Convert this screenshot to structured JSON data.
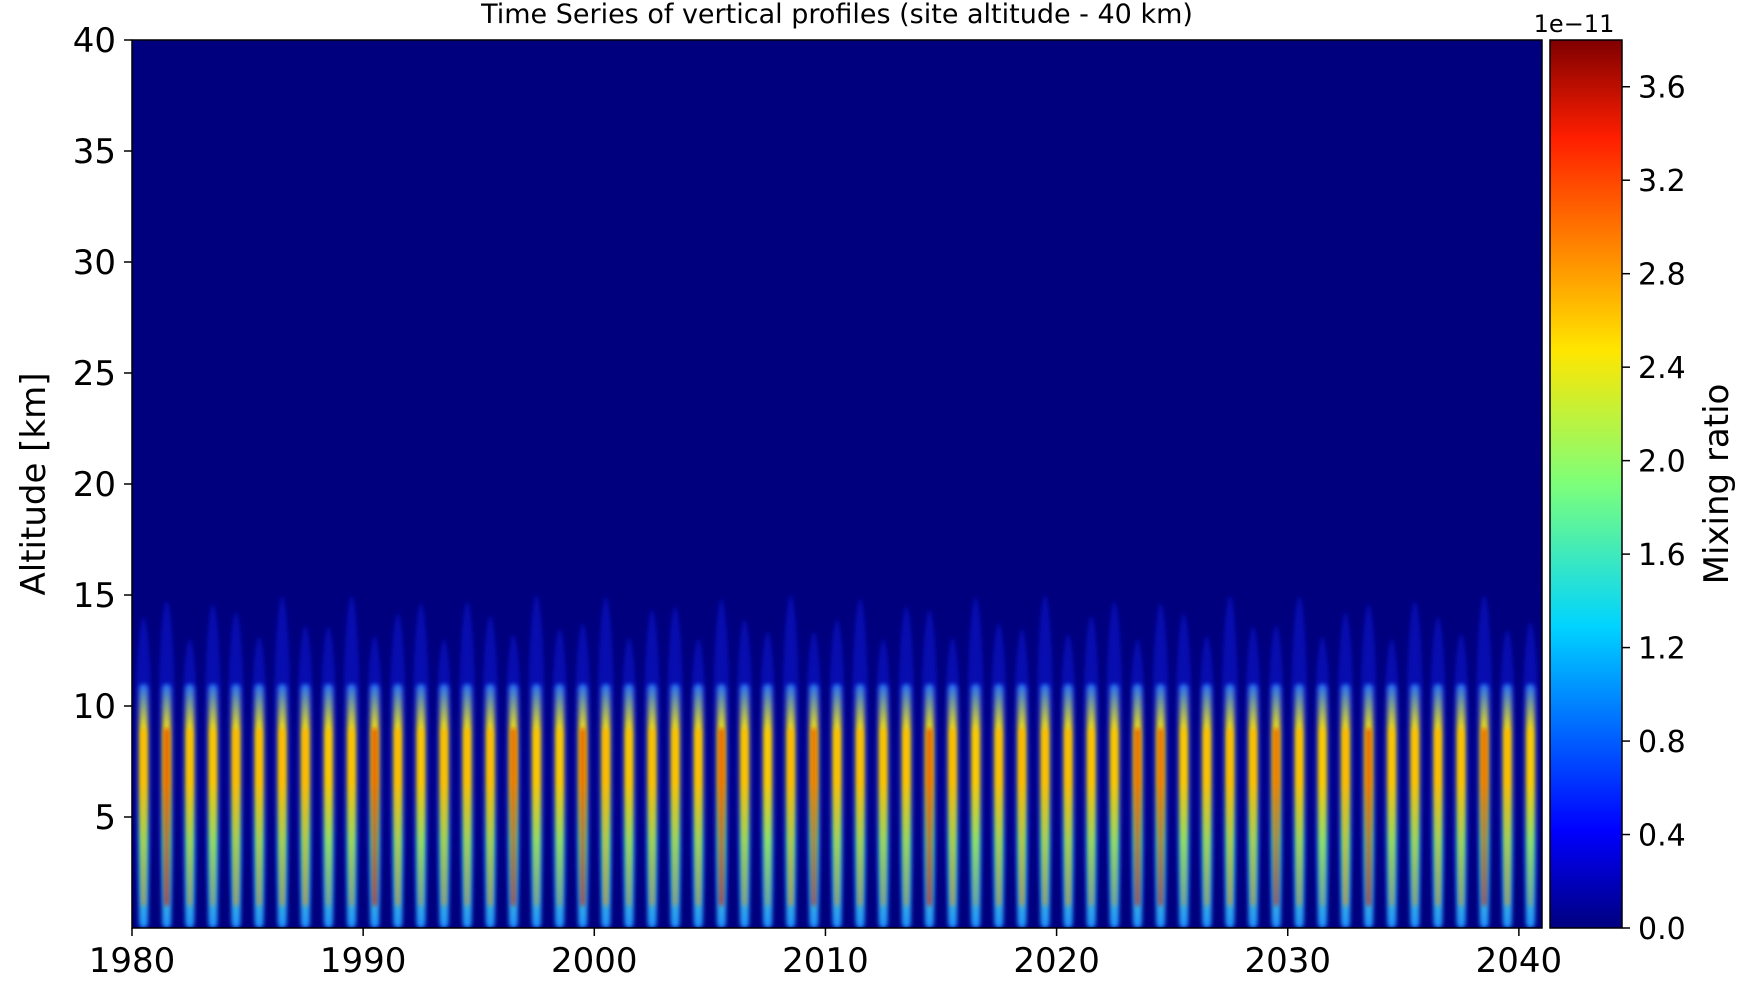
{
  "chart_data": {
    "type": "heatmap",
    "title": "Time Series of vertical profiles (site altitude - 40 km)",
    "xlabel": "",
    "ylabel": "Altitude [km]",
    "xlim": [
      1980,
      2041
    ],
    "ylim": [
      0,
      40
    ],
    "xticks": [
      "1980",
      "1990",
      "2000",
      "2010",
      "2020",
      "2030",
      "2040"
    ],
    "yticks": [
      "5",
      "10",
      "15",
      "20",
      "25",
      "30",
      "35",
      "40"
    ],
    "colorbar": {
      "label": "Mixing ratio",
      "offset_text": "1e−11",
      "range": [
        0.0,
        3.8
      ],
      "ticks": [
        "0.0",
        "0.4",
        "0.8",
        "1.2",
        "1.6",
        "2.0",
        "2.4",
        "2.8",
        "3.2",
        "3.6"
      ],
      "colormap": "jet"
    },
    "series": {
      "period_years": 1,
      "cycles_start_year": 1980,
      "cycles_end_year": 2041,
      "core_altitude_km": [
        1,
        9
      ],
      "plume_top_km": [
        13,
        15
      ]
    },
    "background_color": "#00007f"
  }
}
